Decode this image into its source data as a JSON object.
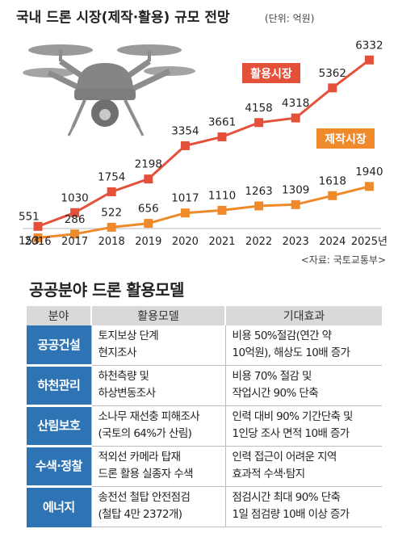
{
  "chart_data": {
    "type": "line",
    "title": "국내 드론 시장(제작·활용) 규모 전망",
    "unit_note": "(단위: 억원)",
    "source": "<자료: 국토교통부>",
    "categories": [
      "2016",
      "2017",
      "2018",
      "2019",
      "2020",
      "2021",
      "2022",
      "2023",
      "2024",
      "2025년"
    ],
    "series": [
      {
        "name": "활용시장",
        "color": "#e4513a",
        "values": [
          551,
          1030,
          1754,
          2198,
          3354,
          3661,
          4158,
          4318,
          5362,
          6332
        ]
      },
      {
        "name": "제작시장",
        "color": "#ee8a2a",
        "values": [
          153,
          286,
          522,
          656,
          1017,
          1110,
          1263,
          1309,
          1618,
          1940
        ]
      }
    ],
    "ylim": [
      0,
      6500
    ],
    "grid": false,
    "legend": "inline labels"
  },
  "table": {
    "title": "공공분야 드론 활용모델",
    "headers": [
      "분야",
      "활용모델",
      "기대효과"
    ],
    "rows": [
      {
        "category": "공공건설",
        "model": [
          "토지보상 단계",
          "현지조사"
        ],
        "effect": [
          "비용 50%절감(연간 약",
          "10억원), 해상도 10배 증가"
        ]
      },
      {
        "category": "하천관리",
        "model": [
          "하천측량 및",
          "하상변동조사"
        ],
        "effect": [
          "비용 70% 절감 및",
          "작업시간 90% 단축"
        ]
      },
      {
        "category": "산림보호",
        "model": [
          "소나무 재선충 피해조사",
          "(국토의 64%가 산림)"
        ],
        "effect": [
          "인력 대비 90% 기간단축 및",
          "1인당 조사 면적 10배 증가"
        ]
      },
      {
        "category": "수색·정찰",
        "model": [
          "적외선 카메라 탑재",
          "드론 활용 실종자 수색"
        ],
        "effect": [
          "인력 접근이 어려운 지역",
          "효과적 수색·탐지"
        ]
      },
      {
        "category": "에너지",
        "model": [
          "송전선 철탑 안전점검",
          "(철탑 4만 2372개)"
        ],
        "effect": [
          "점검시간 최대 90% 단축",
          "1일 점검량 10배 이상 증가"
        ]
      }
    ]
  }
}
